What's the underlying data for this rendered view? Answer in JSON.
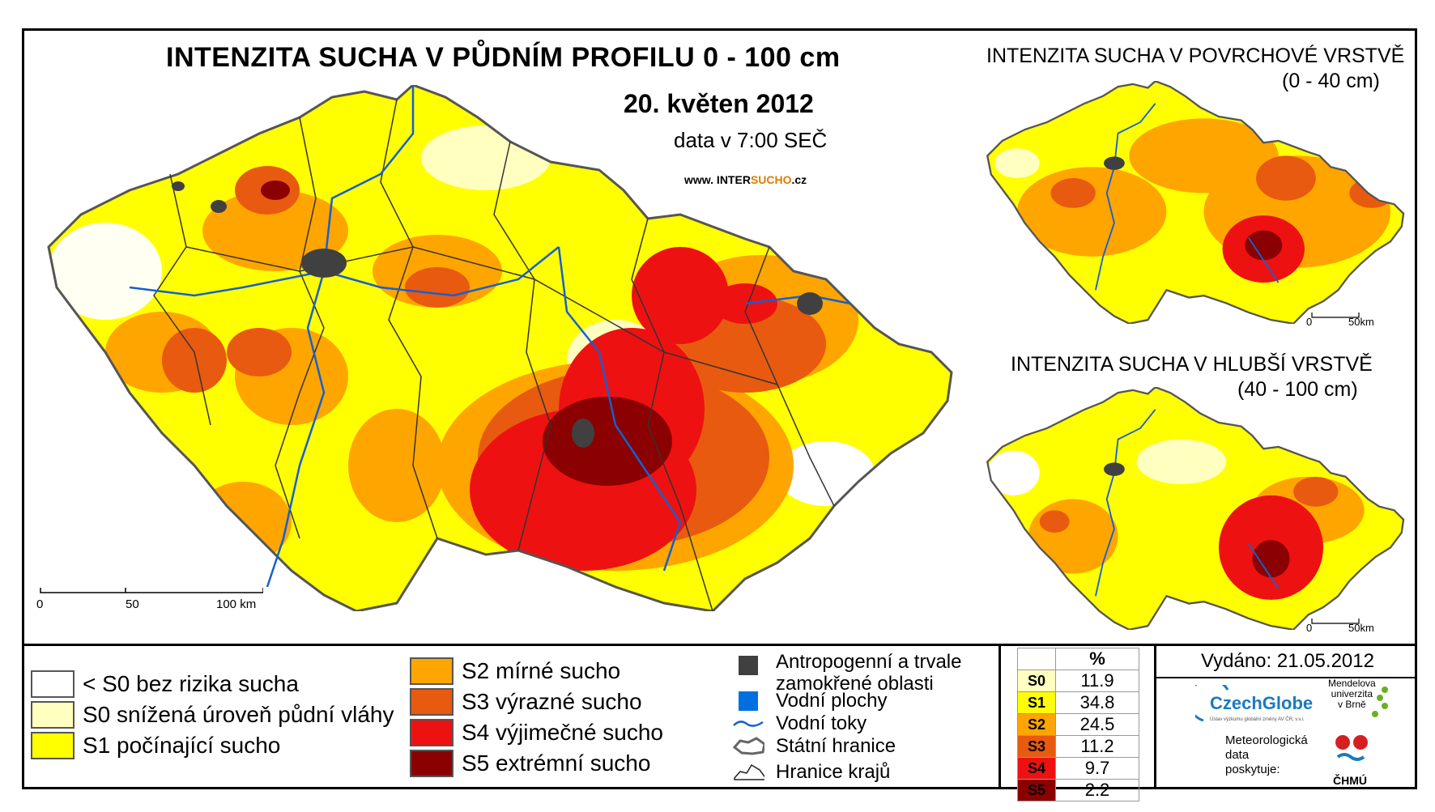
{
  "main": {
    "title": "INTENZITA SUCHA V PŮDNÍM PROFILU 0 - 100 cm",
    "date": "20. květen 2012",
    "time": "data v 7:00 SEČ",
    "web_prefix": "www. INTER",
    "web_brand": "SUCHO",
    "web_suffix": ".cz",
    "scale_labels": [
      "0",
      "50",
      "100 km"
    ]
  },
  "inset_top": {
    "title": "INTENZITA SUCHA V POVRCHOVÉ VRSTVĚ",
    "subtitle": "(0 - 40 cm)",
    "scale_labels": [
      "0",
      "50km"
    ]
  },
  "inset_bottom": {
    "title": "INTENZITA SUCHA V HLUBŠÍ VRSTVĚ",
    "subtitle": "(40 - 100 cm)",
    "scale_labels": [
      "0",
      "50km"
    ]
  },
  "legend": {
    "classes": [
      {
        "label": "< S0 bez rizika sucha",
        "color": "#ffffff"
      },
      {
        "label": "S0 snížená úroveň půdní vláhy",
        "color": "#ffffc0"
      },
      {
        "label": "S1 počínající sucho",
        "color": "#ffff00"
      },
      {
        "label": "S2 mírné sucho",
        "color": "#ffa500"
      },
      {
        "label": "S3 výrazné sucho",
        "color": "#e85a10"
      },
      {
        "label": "S4 výjimečné sucho",
        "color": "#ee1111"
      },
      {
        "label": "S5 extrémní sucho",
        "color": "#8b0000"
      }
    ],
    "symbols": [
      {
        "label_line1": "Antropogenní a trvale",
        "label_line2": "zamokřené oblasti",
        "icon": "dark-square-icon",
        "color": "#404040"
      },
      {
        "label": "Vodní plochy",
        "icon": "blue-square-icon",
        "color": "#0070e0"
      },
      {
        "label": "Vodní toky",
        "icon": "river-line-icon",
        "color": "#1560d0"
      },
      {
        "label": "Státní hranice",
        "icon": "state-border-icon"
      },
      {
        "label": "Hranice krajů",
        "icon": "region-border-icon"
      }
    ]
  },
  "percent_table": {
    "header": "%",
    "rows": [
      {
        "cls": "S0",
        "value": "11.9",
        "color": "#ffffc0"
      },
      {
        "cls": "S1",
        "value": "34.8",
        "color": "#ffff00"
      },
      {
        "cls": "S2",
        "value": "24.5",
        "color": "#ffa500"
      },
      {
        "cls": "S3",
        "value": "11.2",
        "color": "#e85a10"
      },
      {
        "cls": "S4",
        "value": "9.7",
        "color": "#ee1111"
      },
      {
        "cls": "S5",
        "value": "2.2",
        "color": "#8b0000"
      }
    ]
  },
  "issued": "Vydáno: 21.05.2012",
  "credits": {
    "czechglobe": "CzechGlobe",
    "czechglobe_sub": "Ústav výzkumu globální změny AV ČR, v.v.i.",
    "mendel_line1": "Mendelova",
    "mendel_line2": "univerzita",
    "mendel_line3": "v Brně",
    "meteo_line1": "Meteorologická",
    "meteo_line2": "data",
    "meteo_line3": "poskytuje:",
    "chmu": "ČHMÚ"
  }
}
